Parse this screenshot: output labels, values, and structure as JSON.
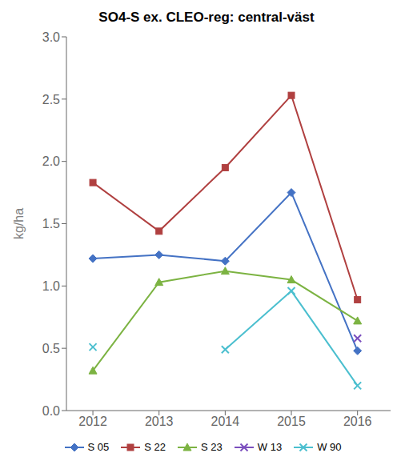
{
  "chart_data": {
    "type": "line",
    "title": "SO4-S ex. CLEO-reg: central-väst",
    "y_label": "kg/ha",
    "x": [
      2012,
      2013,
      2014,
      2015,
      2016
    ],
    "xlim": [
      2011.6,
      2016.5
    ],
    "xticks": [
      2012,
      2013,
      2014,
      2015,
      2016
    ],
    "ylim": [
      0,
      3.0
    ],
    "yticks": [
      {
        "value": 0,
        "label": "0.0"
      },
      0.5,
      {
        "value": 1.0,
        "label": "1.0"
      },
      1.5,
      {
        "value": 2.0,
        "label": "2.0"
      },
      2.5,
      {
        "value": 3.0,
        "label": "3.0"
      }
    ],
    "grid": false,
    "legend": "bottom",
    "series": [
      {
        "name": "S 05",
        "color": "#4472C4",
        "marker": "diamond",
        "values": [
          1.22,
          1.25,
          1.2,
          1.75,
          0.48
        ]
      },
      {
        "name": "S 22",
        "color": "#B04040",
        "marker": "square",
        "values": [
          1.83,
          1.44,
          1.95,
          2.53,
          0.89
        ]
      },
      {
        "name": "S 23",
        "color": "#7CB342",
        "marker": "triangle",
        "values": [
          0.32,
          1.03,
          1.12,
          1.05,
          0.72
        ]
      },
      {
        "name": "W 13",
        "color": "#7B4FBE",
        "marker": "x",
        "values": [
          null,
          null,
          null,
          null,
          0.58
        ]
      },
      {
        "name": "W 90",
        "color": "#4BBFCF",
        "marker": "x",
        "values": [
          0.51,
          null,
          0.49,
          0.96,
          0.2
        ]
      }
    ]
  }
}
